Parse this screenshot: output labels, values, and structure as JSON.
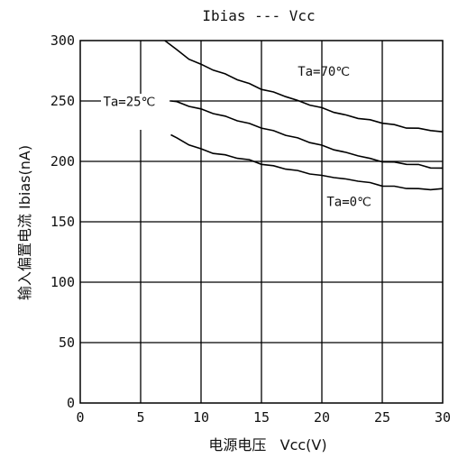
{
  "chart_data": {
    "type": "line",
    "title": "Ibias ---  Vcc",
    "xlabel": "电源电压   Vcc(V)",
    "ylabel": "输入偏置电流 Ibias(nA)",
    "xlim": [
      0,
      30
    ],
    "ylim": [
      0,
      300
    ],
    "xticks": [
      0,
      5,
      10,
      15,
      20,
      25,
      30
    ],
    "yticks": [
      0,
      50,
      100,
      150,
      200,
      250,
      300
    ],
    "grid": true,
    "legend": "none",
    "series": [
      {
        "name": "Ta=70℃",
        "x": [
          7,
          8,
          9,
          10,
          11,
          12,
          13,
          14,
          15,
          16,
          17,
          18,
          19,
          20,
          21,
          22,
          23,
          24,
          25,
          26,
          27,
          28,
          29,
          30
        ],
        "y": [
          300,
          292,
          285,
          280,
          276,
          272,
          268,
          264,
          260,
          257,
          254,
          250,
          247,
          244,
          241,
          238,
          236,
          234,
          232,
          230,
          228,
          227,
          226,
          224
        ]
      },
      {
        "name": "Ta=25℃",
        "x": [
          7.5,
          8,
          9,
          10,
          11,
          12,
          13,
          14,
          15,
          16,
          17,
          18,
          19,
          20,
          21,
          22,
          23,
          24,
          25,
          26,
          27,
          28,
          29,
          30
        ],
        "y": [
          250,
          249,
          246,
          243,
          240,
          237,
          234,
          231,
          228,
          225,
          222,
          219,
          216,
          213,
          210,
          207,
          205,
          202,
          200,
          199,
          198,
          197,
          195,
          194
        ]
      },
      {
        "name": "Ta=0℃",
        "x": [
          7.5,
          8,
          9,
          10,
          11,
          12,
          13,
          14,
          15,
          16,
          17,
          18,
          19,
          20,
          21,
          22,
          23,
          24,
          25,
          26,
          27,
          28,
          29,
          30
        ],
        "y": [
          222,
          219,
          214,
          210,
          207,
          205,
          203,
          201,
          198,
          196,
          194,
          192,
          190,
          188,
          187,
          185,
          184,
          182,
          180,
          179,
          178,
          177,
          177,
          177
        ]
      }
    ]
  }
}
